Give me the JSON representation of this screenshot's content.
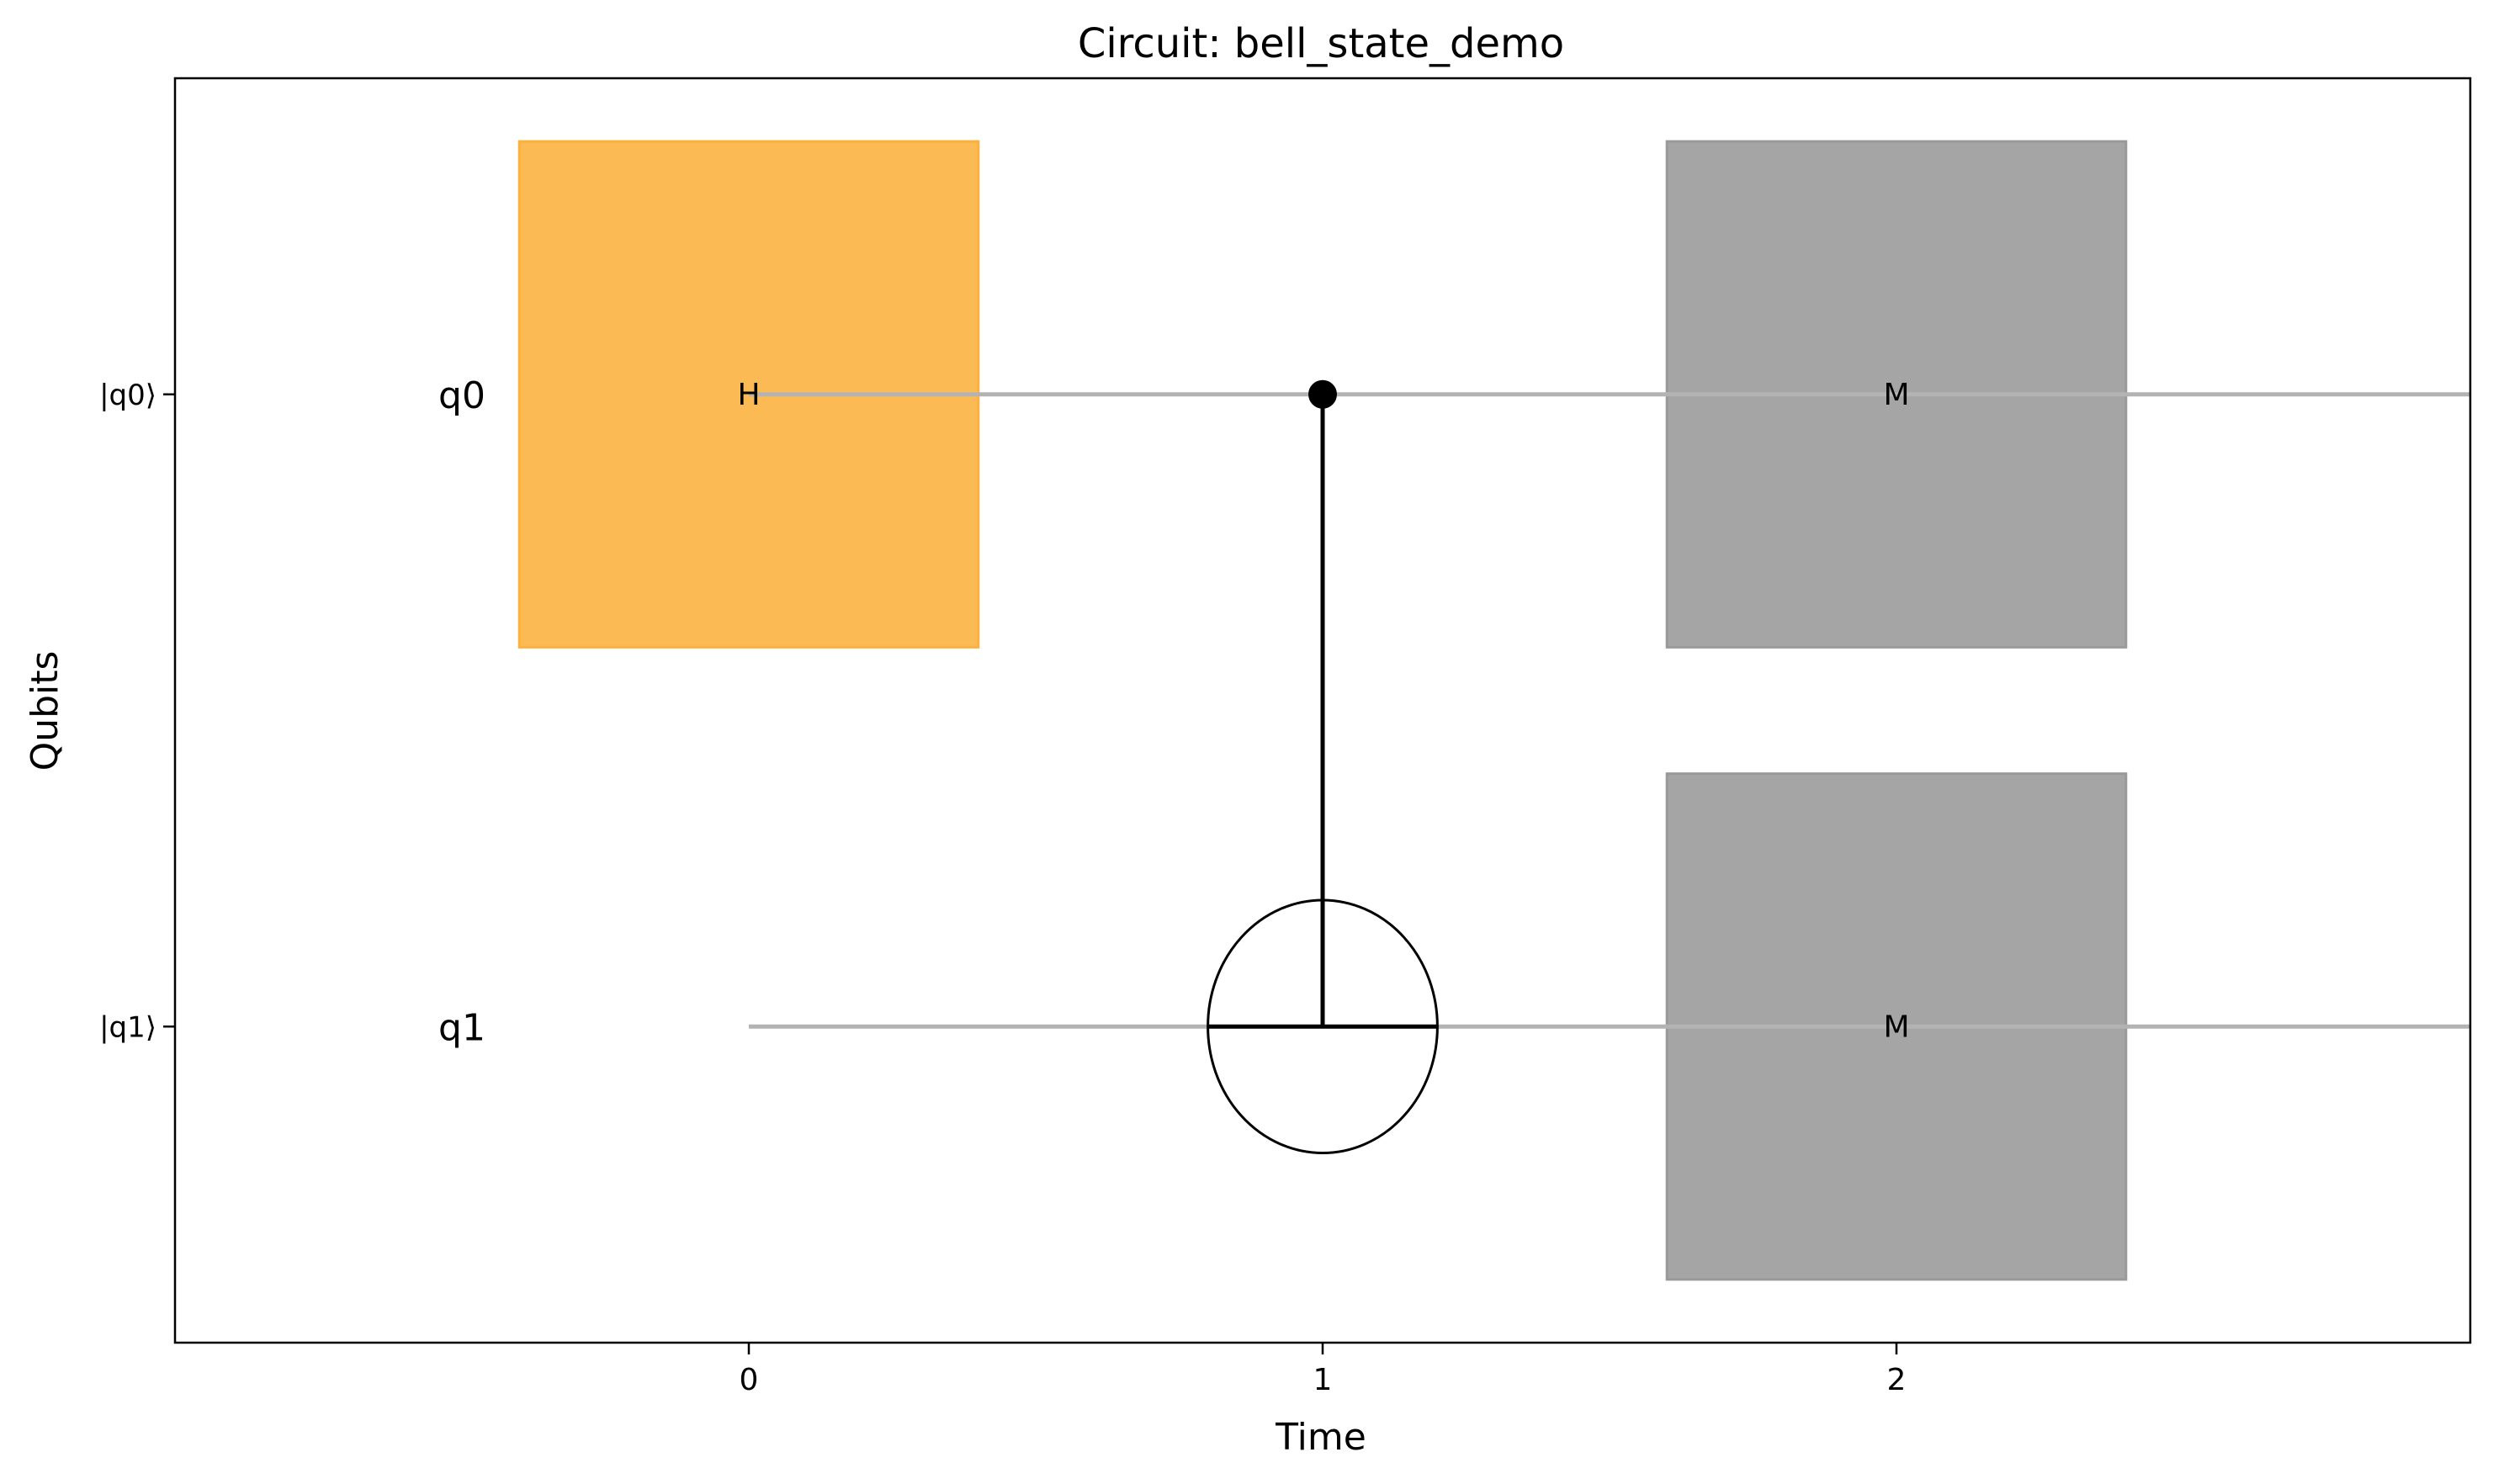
{
  "title": "Circuit: bell_state_demo",
  "xlabel": "Time",
  "ylabel": "Qubits",
  "x_ticks": [
    {
      "value": 0,
      "label": "0"
    },
    {
      "value": 1,
      "label": "1"
    },
    {
      "value": 2,
      "label": "2"
    }
  ],
  "x_range": [
    -1,
    3
  ],
  "y_range": [
    -0.5,
    1.5
  ],
  "qubits": [
    {
      "id": "q0",
      "tick_label": "|q0⟩",
      "name": "q0",
      "level": 1
    },
    {
      "id": "q1",
      "tick_label": "|q1⟩",
      "name": "q1",
      "level": 0
    }
  ],
  "wire_start": 0,
  "gates": [
    {
      "type": "box",
      "label": "H",
      "qubit": "q0",
      "time": 0,
      "color": "#fbb13c"
    },
    {
      "type": "control",
      "qubit": "q0",
      "time": 1
    },
    {
      "type": "target",
      "qubit": "q1",
      "time": 1
    },
    {
      "type": "box",
      "label": "M",
      "qubit": "q0",
      "time": 2,
      "color": "#999999"
    },
    {
      "type": "box",
      "label": "M",
      "qubit": "q1",
      "time": 2,
      "color": "#999999"
    }
  ],
  "colors": {
    "wire": "#b3b3b3",
    "connector": "#000000",
    "axes": "#000000"
  }
}
